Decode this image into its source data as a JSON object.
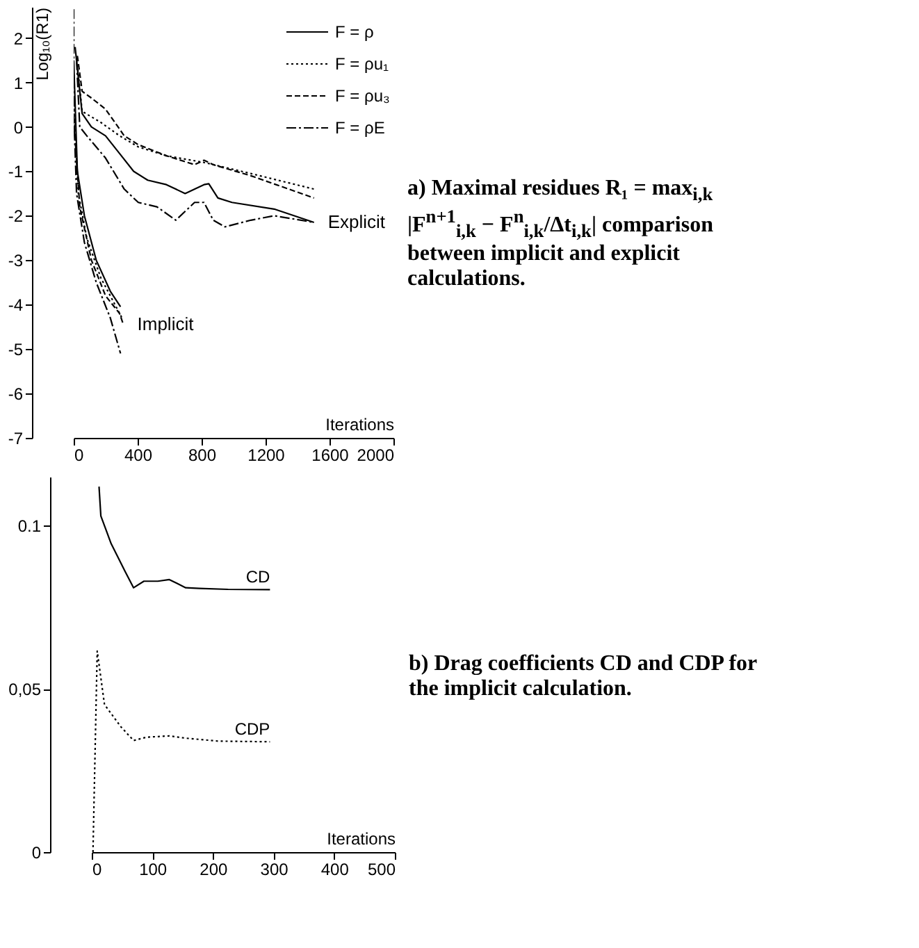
{
  "chart_data": [
    {
      "type": "line",
      "xlabel": "Iterations",
      "ylabel": "Log₁₀(R1)",
      "xlim": [
        0,
        2000
      ],
      "xticks": [
        0,
        400,
        800,
        1200,
        1600,
        2000
      ],
      "ylim": [
        -7,
        2.7
      ],
      "yticks": [
        -7,
        -6,
        -5,
        -4,
        -3,
        -2,
        -1,
        0,
        1,
        2
      ],
      "grid": false,
      "legend": "top right",
      "annotations": [
        "a) Maximal residues R₁ = max$_{i,k}$ |F$^{n+1}$$_{i,k}$ − F$^{n}$$_{i,k}$/Δt$_{i,k}$| comparison between implicit and explicit calculations.",
        {
          "text": "Explicit",
          "x": 1503,
          "y": -2.15
        },
        {
          "text": "Implicit",
          "x": 311,
          "y": -4.45
        }
      ],
      "series": [
        {
          "name": "F = ρ",
          "color": "#000000",
          "line_style": "solid",
          "x": [
            9,
            53,
            111,
            199,
            287,
            375,
            463,
            580,
            697,
            815,
            845,
            902,
            990,
            1254,
            1503
          ],
          "values": [
            1.8,
            0.3,
            0.0,
            -0.2,
            -0.6,
            -1.0,
            -1.2,
            -1.3,
            -1.5,
            -1.3,
            -1.28,
            -1.6,
            -1.7,
            -1.85,
            -2.15
          ]
        },
        {
          "name": "F = ρu₁",
          "color": "#000000",
          "line_style": "dotted",
          "x": [
            23,
            53,
            170,
            287,
            404,
            580,
            815,
            1108,
            1503
          ],
          "values": [
            1.4,
            0.35,
            0.1,
            -0.2,
            -0.45,
            -0.65,
            -0.8,
            -1.05,
            -1.4
          ]
        },
        {
          "name": "F = ρu₃",
          "color": "#000000",
          "line_style": "dashed",
          "x": [
            23,
            53,
            111,
            199,
            258,
            316,
            404,
            580,
            756,
            815,
            873,
            1108,
            1503
          ],
          "values": [
            1.6,
            0.8,
            0.65,
            0.4,
            0.1,
            -0.2,
            -0.4,
            -0.65,
            -0.85,
            -0.75,
            -0.85,
            -1.1,
            -1.6
          ]
        },
        {
          "name": "F = ρE",
          "color": "#000000",
          "line_style": "dashdot",
          "x": [
            18,
            38,
            82,
            199,
            316,
            404,
            521,
            639,
            756,
            815,
            873,
            946,
            1108,
            1254,
            1503
          ],
          "values": [
            1.5,
            0.0,
            -0.2,
            -0.7,
            -1.4,
            -1.7,
            -1.8,
            -2.1,
            -1.7,
            -1.7,
            -2.1,
            -2.25,
            -2.1,
            -2.0,
            -2.15
          ]
        },
        {
          "color": "#000000",
          "line_style": "solid",
          "x": [
            0,
            23,
            67,
            141,
            229,
            293
          ],
          "values": [
            1.5,
            -1.0,
            -2.0,
            -3.0,
            -3.7,
            -4.05
          ]
        },
        {
          "color": "#000000",
          "line_style": "dotted",
          "x": [
            0,
            29,
            82,
            170,
            258,
            302
          ],
          "values": [
            0.5,
            -1.5,
            -2.5,
            -3.4,
            -4.0,
            -4.3
          ]
        },
        {
          "color": "#000000",
          "line_style": "dashed",
          "x": [
            0,
            38,
            111,
            199,
            287,
            311
          ],
          "values": [
            0.2,
            -1.8,
            -3.0,
            -3.8,
            -4.2,
            -4.45
          ]
        },
        {
          "color": "#000000",
          "line_style": "dashdot",
          "x": [
            0,
            0,
            18,
            67,
            141,
            229,
            293
          ],
          "values": [
            2.65,
            0.4,
            -1.5,
            -2.6,
            -3.5,
            -4.3,
            -5.1
          ]
        }
      ]
    },
    {
      "type": "line",
      "xlabel": "Iterations",
      "xlim": [
        0,
        500
      ],
      "xticks": [
        0,
        100,
        200,
        300,
        400,
        500
      ],
      "ylim": [
        0,
        0.115
      ],
      "yticks": [
        0,
        {
          "value": 0.05,
          "label": "0,05"
        },
        {
          "value": 0.1,
          "label": "0.1"
        }
      ],
      "grid": false,
      "annotations": [
        "b) Drag coefficients CD and CDP for the implicit calculation."
      ],
      "series": [
        {
          "name": "CD",
          "color": "#000000",
          "line_style": "solid",
          "x": [
            12,
            15,
            32,
            55,
            69,
            86,
            109,
            128,
            155,
            178,
            225,
            294
          ],
          "values": [
            0.112,
            0.103,
            0.0945,
            0.086,
            0.081,
            0.083,
            0.083,
            0.0835,
            0.081,
            0.0808,
            0.0805,
            0.0804
          ]
        },
        {
          "name": "CDP",
          "color": "#000000",
          "line_style": "dotted",
          "x": [
            2,
            9,
            21,
            48,
            69,
            90,
            128,
            155,
            209,
            294
          ],
          "values": [
            0.0,
            0.0616,
            0.0452,
            0.0384,
            0.0342,
            0.0352,
            0.0356,
            0.0349,
            0.034,
            0.0338
          ]
        }
      ]
    }
  ]
}
